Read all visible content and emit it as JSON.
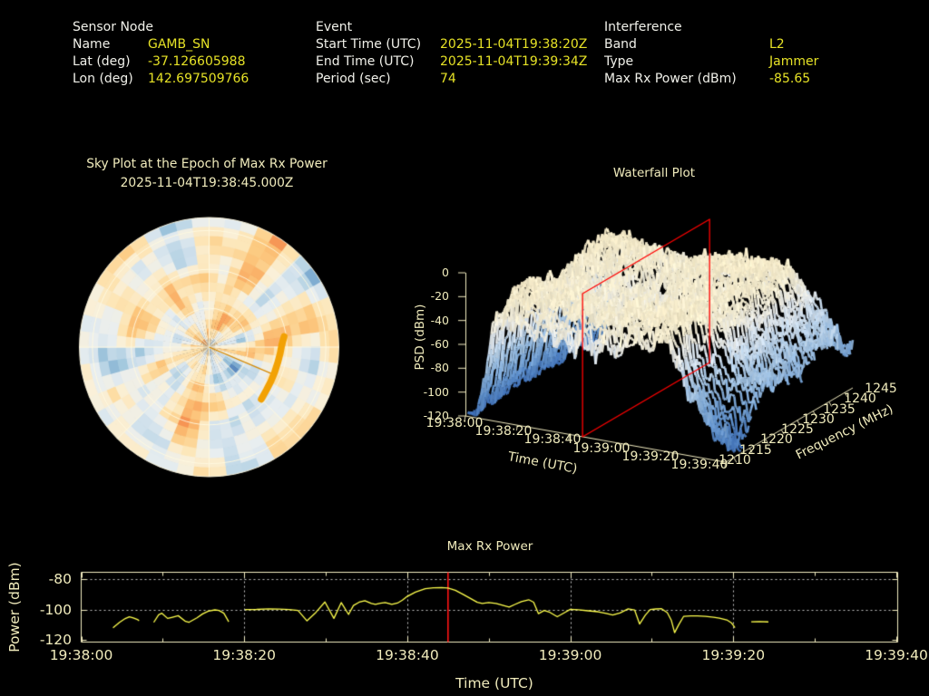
{
  "page": {
    "background": "#000000"
  },
  "colors": {
    "label_text": "#f1f1ea",
    "value_text": "#e6e226",
    "plot_text": "#f0ebbc",
    "axis": "#f2ecc0",
    "grid_dotted": "#dcdcdc",
    "series_line": "#ffff4d",
    "marker_line": "#ff1414",
    "slice_plane": "#ff0000",
    "track": "#f2a104",
    "pointer": "#d88a00",
    "sky_grid": "#fffae1"
  },
  "header": {
    "sensor": {
      "title": "Sensor Node",
      "rows": [
        {
          "label": "Name",
          "value": "GAMB_SN"
        },
        {
          "label": "Lat (deg)",
          "value": "-37.126605988"
        },
        {
          "label": "Lon (deg)",
          "value": "142.697509766"
        }
      ]
    },
    "event": {
      "title": "Event",
      "rows": [
        {
          "label": "Start Time (UTC)",
          "value": "2025-11-04T19:38:20Z"
        },
        {
          "label": "End Time (UTC)",
          "value": "2025-11-04T19:39:34Z"
        },
        {
          "label": "Period (sec)",
          "value": "74"
        }
      ]
    },
    "interference": {
      "title": "Interference",
      "rows": [
        {
          "label": "Band",
          "value": "L2"
        },
        {
          "label": "Type",
          "value": "Jammer"
        },
        {
          "label": "Max Rx Power (dBm)",
          "value": "-85.65"
        }
      ]
    }
  },
  "sky_plot": {
    "title": "Sky Plot at the Epoch of Max Rx Power",
    "subtitle": "2025-11-04T19:38:45.000Z"
  },
  "waterfall": {
    "title": "Waterfall Plot",
    "xlabel": "Time (UTC)",
    "ylabel": "Frequency (MHz)",
    "zlabel": "PSD (dBm)"
  },
  "max_rx": {
    "title": "Max Rx Power",
    "xlabel": "Time (UTC)",
    "ylabel": "Power (dBm)"
  },
  "chart_data": [
    {
      "type": "heatmap",
      "subtype": "polar-sky-heatmap",
      "title": "Sky Plot at the Epoch of Max Rx Power",
      "subtitle": "2025-11-04T19:38:45.000Z",
      "sectors": 48,
      "rings": 14,
      "elevation_ring_fractions": [
        0.3,
        0.6,
        0.9,
        1.0
      ],
      "azimuth_spokes_deg": [
        0,
        45,
        90,
        135,
        180,
        225,
        270,
        315
      ],
      "palette": "RdYlBu-like mosaic, warm-dominant with scattered blue patches (individual cell values are unlabeled in the image)",
      "noise_seed": 11,
      "track_az_el": [
        [
          82,
          37.5
        ],
        [
          88,
          39.5
        ],
        [
          95,
          40.5
        ],
        [
          103,
          41.2
        ],
        [
          111,
          41.3
        ],
        [
          119,
          41.0
        ],
        [
          127,
          40.3
        ],
        [
          135,
          38.8
        ]
      ],
      "pointer_az_el": [
        113,
        42
      ]
    },
    {
      "type": "area",
      "subtype": "3d-waterfall-surface",
      "title": "Waterfall Plot",
      "xlabel": "Time (UTC)",
      "ylabel": "Frequency (MHz)",
      "zlabel": "PSD (dBm)",
      "x_ticks": [
        "19:38:00",
        "19:38:20",
        "19:38:40",
        "19:39:00",
        "19:39:20",
        "19:39:40"
      ],
      "x_tick_sec": [
        0,
        20,
        40,
        60,
        80,
        100
      ],
      "y_ticks": [
        1210,
        1215,
        1220,
        1225,
        1230,
        1235,
        1240,
        1245
      ],
      "y_range_mhz": [
        1207.5,
        1247.5
      ],
      "z_ticks": [
        0,
        -20,
        -40,
        -60,
        -80,
        -100,
        -120
      ],
      "z_range": [
        -120,
        0
      ],
      "slice_plane_time": "19:38:45",
      "slice_plane_time_sec": 45,
      "surface_summary": "PSD near -110 dBm before 19:38:10, rises to a cream plateau near -30 dBm from 19:38:15 to 19:39:15, deep notch near 1213 MHz after 19:39:20, falls to about -75 dBm by the end",
      "noise_seed": 5
    },
    {
      "type": "line",
      "title": "Max Rx Power",
      "xlabel": "Time (UTC)",
      "ylabel": "Power (dBm)",
      "x_ticks": [
        "19:38:00",
        "19:38:20",
        "19:38:40",
        "19:39:00",
        "19:39:20",
        "19:39:40"
      ],
      "x_tick_sec": [
        0,
        20,
        40,
        60,
        80,
        100
      ],
      "y_ticks": [
        -80,
        -100,
        -120
      ],
      "ylim": [
        -120,
        -75.5
      ],
      "grid": "dotted horizontal at -80/-100, dotted vertical at 20s intervals, minor ticks every 10s",
      "marker_time_sec": 45,
      "max_value_dbm": -85.65,
      "segments": [
        [
          [
            3.9,
            -112.1
          ],
          [
            4.7,
            -108.5
          ],
          [
            5.4,
            -106.0
          ],
          [
            5.9,
            -104.9
          ],
          [
            6.4,
            -105.6
          ],
          [
            6.9,
            -106.6
          ],
          [
            7.1,
            -107.5
          ]
        ],
        [
          [
            8.9,
            -108.5
          ],
          [
            9.5,
            -103.5
          ],
          [
            9.9,
            -102.5
          ],
          [
            10.6,
            -105.9
          ],
          [
            11.2,
            -105.1
          ],
          [
            11.9,
            -104.1
          ],
          [
            12.8,
            -107.9
          ],
          [
            13.2,
            -108.5
          ],
          [
            14.2,
            -105.5
          ],
          [
            14.9,
            -102.9
          ],
          [
            15.6,
            -101.1
          ],
          [
            16.4,
            -100.3
          ],
          [
            16.9,
            -100.7
          ],
          [
            17.5,
            -102.5
          ],
          [
            18.1,
            -108.1
          ]
        ],
        [
          [
            20.1,
            -100.1
          ],
          [
            21.5,
            -100.0
          ],
          [
            23.0,
            -99.6
          ],
          [
            24.3,
            -99.8
          ],
          [
            25.5,
            -100.1
          ],
          [
            26.6,
            -100.7
          ],
          [
            27.7,
            -107.5
          ],
          [
            28.8,
            -101.9
          ],
          [
            29.9,
            -95.1
          ],
          [
            31.0,
            -105.9
          ],
          [
            31.9,
            -95.5
          ],
          [
            32.8,
            -103.3
          ],
          [
            33.4,
            -97.4
          ],
          [
            34.1,
            -95.2
          ],
          [
            34.8,
            -94.2
          ],
          [
            35.6,
            -96.0
          ],
          [
            36.1,
            -96.7
          ],
          [
            36.7,
            -95.9
          ],
          [
            37.3,
            -95.4
          ],
          [
            38.1,
            -96.6
          ],
          [
            38.8,
            -95.8
          ],
          [
            39.4,
            -93.9
          ],
          [
            40.0,
            -91.4
          ],
          [
            41.0,
            -88.6
          ],
          [
            42.2,
            -86.4
          ],
          [
            43.2,
            -85.7
          ],
          [
            44.2,
            -85.6
          ],
          [
            45.0,
            -85.9
          ],
          [
            45.9,
            -87.4
          ],
          [
            46.9,
            -90.2
          ],
          [
            47.9,
            -93.2
          ],
          [
            48.6,
            -95.3
          ],
          [
            49.2,
            -96.1
          ],
          [
            50.0,
            -95.4
          ],
          [
            50.9,
            -96.1
          ],
          [
            51.8,
            -97.4
          ],
          [
            52.5,
            -98.4
          ],
          [
            53.2,
            -96.7
          ],
          [
            54.0,
            -94.8
          ],
          [
            54.9,
            -93.6
          ],
          [
            55.5,
            -95.2
          ],
          [
            56.1,
            -102.8
          ],
          [
            56.8,
            -100.7
          ],
          [
            57.5,
            -101.9
          ],
          [
            58.4,
            -104.8
          ],
          [
            59.2,
            -102.4
          ],
          [
            60.0,
            -99.9
          ],
          [
            61.0,
            -100.2
          ],
          [
            62.2,
            -100.9
          ],
          [
            63.4,
            -101.5
          ],
          [
            64.4,
            -102.6
          ],
          [
            65.2,
            -103.7
          ],
          [
            66.1,
            -102.3
          ],
          [
            67.1,
            -99.6
          ],
          [
            67.9,
            -100.4
          ],
          [
            68.5,
            -109.6
          ],
          [
            69.2,
            -103.8
          ],
          [
            69.8,
            -100.1
          ],
          [
            70.5,
            -99.7
          ],
          [
            71.2,
            -99.5
          ],
          [
            71.9,
            -102.1
          ],
          [
            72.4,
            -107.2
          ],
          [
            72.8,
            -115.3
          ],
          [
            73.3,
            -110.1
          ],
          [
            73.9,
            -104.6
          ],
          [
            74.8,
            -104.2
          ],
          [
            75.6,
            -104.3
          ],
          [
            76.6,
            -104.6
          ],
          [
            77.6,
            -105.1
          ],
          [
            78.3,
            -105.7
          ],
          [
            79.2,
            -106.9
          ],
          [
            79.8,
            -109.0
          ],
          [
            80.2,
            -112.0
          ]
        ],
        [
          [
            82.2,
            -108.1
          ],
          [
            83.2,
            -108.0
          ],
          [
            84.3,
            -108.2
          ]
        ]
      ]
    }
  ]
}
